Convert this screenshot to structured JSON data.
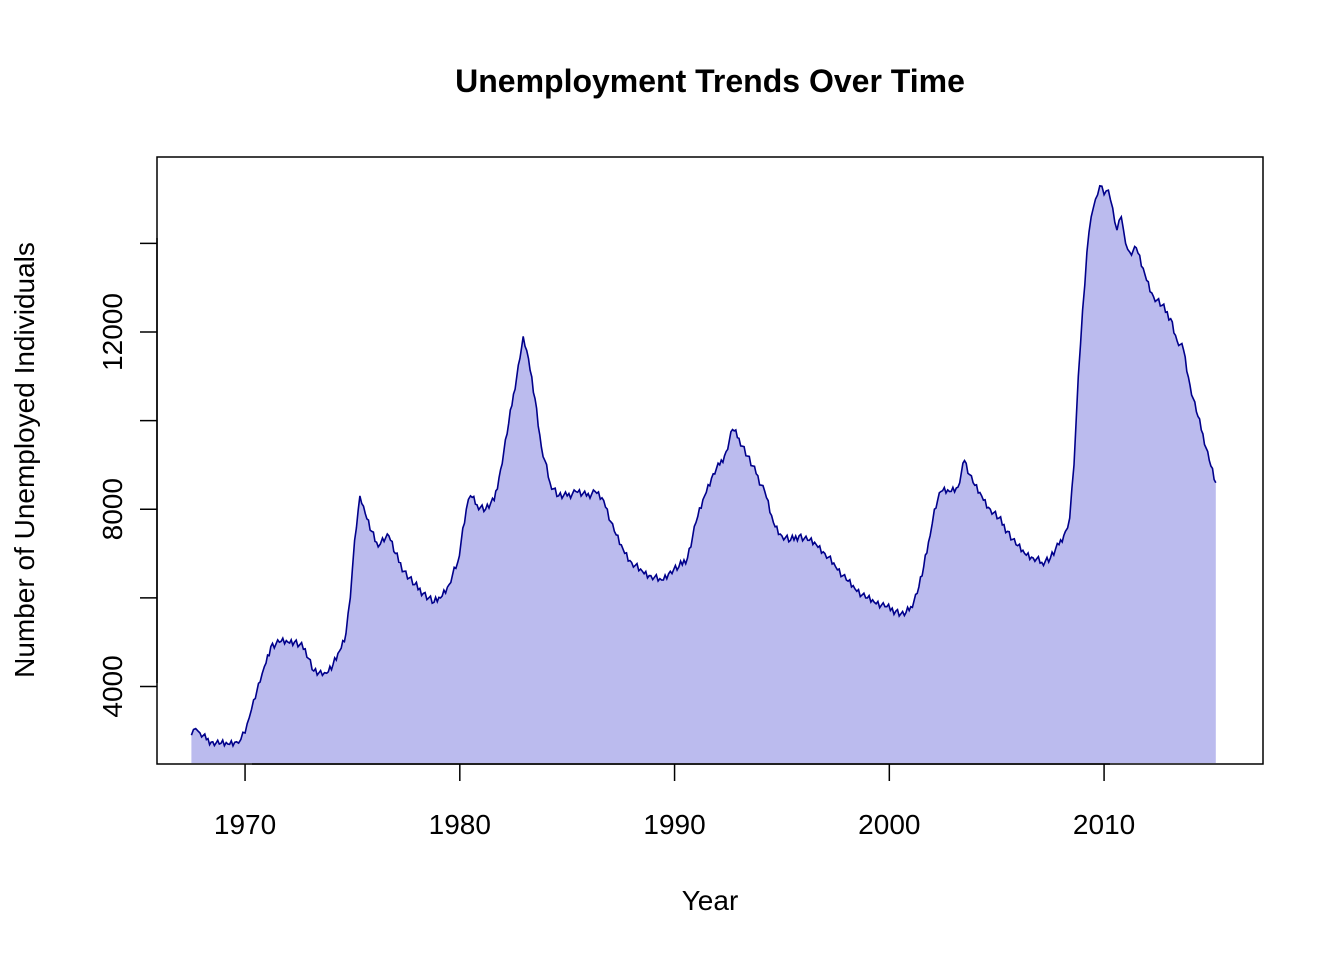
{
  "chart_data": {
    "type": "area",
    "title": "Unemployment Trends Over Time",
    "xlabel": "Year",
    "ylabel": "Number of Unemployed Individuals",
    "xlim": [
      1965.9,
      2017.4
    ],
    "ylim": [
      2250,
      15950
    ],
    "x_ticks": [
      1970,
      1980,
      1990,
      2000,
      2010
    ],
    "y_ticks": [
      4000,
      8000,
      12000
    ],
    "hidden_y_ticks": [
      6000,
      10000,
      14000
    ],
    "grid": false,
    "legend": "none",
    "colors": {
      "fill": "#BBBBEE",
      "line": "#00008B"
    },
    "series": [
      {
        "x": [
          1967.5,
          1967.7,
          1967.9,
          1968.2,
          1968.5,
          1968.8,
          1969.2,
          1969.6,
          1969.8,
          1970.0,
          1970.2,
          1970.4,
          1970.7,
          1970.9,
          1971.2,
          1971.6,
          1972.0,
          1972.3,
          1972.8,
          1973.2,
          1973.6,
          1973.8,
          1974.1,
          1974.4,
          1974.7,
          1974.9,
          1975.1,
          1975.35,
          1975.6,
          1975.9,
          1976.2,
          1976.4,
          1976.7,
          1977.0,
          1977.4,
          1977.9,
          1978.3,
          1978.8,
          1979.1,
          1979.5,
          1979.9,
          1980.3,
          1980.5,
          1980.8,
          1981.2,
          1981.6,
          1981.9,
          1982.2,
          1982.5,
          1982.8,
          1982.95,
          1983.2,
          1983.5,
          1983.8,
          1984.2,
          1984.6,
          1985.0,
          1985.4,
          1985.9,
          1986.3,
          1986.7,
          1987.2,
          1987.6,
          1988.0,
          1988.5,
          1988.9,
          1989.4,
          1989.8,
          1990.2,
          1990.6,
          1991.0,
          1991.4,
          1991.8,
          1992.1,
          1992.4,
          1992.7,
          1993.0,
          1993.4,
          1993.8,
          1994.2,
          1994.6,
          1995.0,
          1995.4,
          1995.8,
          1996.2,
          1996.6,
          1997.0,
          1997.5,
          1998.0,
          1998.4,
          1998.9,
          1999.3,
          1999.8,
          2000.3,
          2000.7,
          2001.0,
          2001.3,
          2001.6,
          2001.9,
          2002.1,
          2002.4,
          2002.8,
          2003.2,
          2003.5,
          2003.9,
          2004.3,
          2004.7,
          2005.1,
          2005.5,
          2005.9,
          2006.3,
          2006.7,
          2007.1,
          2007.5,
          2007.9,
          2008.2,
          2008.4,
          2008.6,
          2008.8,
          2009.0,
          2009.2,
          2009.4,
          2009.6,
          2009.8,
          2010.0,
          2010.2,
          2010.4,
          2010.6,
          2010.8,
          2011.0,
          2011.2,
          2011.5,
          2011.9,
          2012.3,
          2012.7,
          2013.1,
          2013.4,
          2013.7,
          2014.0,
          2014.3,
          2014.6,
          2014.9,
          2015.2
        ],
        "values": [
          2900,
          3050,
          2950,
          2800,
          2750,
          2700,
          2700,
          2750,
          2800,
          2950,
          3300,
          3700,
          4100,
          4450,
          4900,
          5000,
          5000,
          5000,
          4850,
          4350,
          4250,
          4300,
          4500,
          4800,
          5200,
          6000,
          7300,
          8300,
          7900,
          7500,
          7150,
          7350,
          7400,
          7000,
          6600,
          6300,
          6100,
          5900,
          6000,
          6300,
          6800,
          8000,
          8300,
          8100,
          8000,
          8200,
          8900,
          9700,
          10600,
          11400,
          11900,
          11400,
          10500,
          9400,
          8600,
          8300,
          8300,
          8400,
          8300,
          8400,
          8200,
          7500,
          7100,
          6800,
          6600,
          6500,
          6400,
          6600,
          6700,
          6900,
          7700,
          8300,
          8800,
          9000,
          9300,
          9800,
          9600,
          9200,
          8800,
          8400,
          7700,
          7400,
          7300,
          7400,
          7300,
          7200,
          7000,
          6700,
          6400,
          6200,
          6000,
          5900,
          5800,
          5700,
          5600,
          5800,
          6100,
          6700,
          7400,
          8000,
          8400,
          8400,
          8500,
          9100,
          8600,
          8300,
          8000,
          7800,
          7500,
          7200,
          7000,
          6900,
          6800,
          6900,
          7200,
          7500,
          7800,
          9000,
          11000,
          12500,
          13800,
          14600,
          15000,
          15300,
          15100,
          15200,
          14800,
          14300,
          14600,
          14000,
          13800,
          13900,
          13300,
          12800,
          12600,
          12300,
          11800,
          11600,
          10800,
          10200,
          9700,
          9100,
          8600
        ]
      }
    ]
  }
}
